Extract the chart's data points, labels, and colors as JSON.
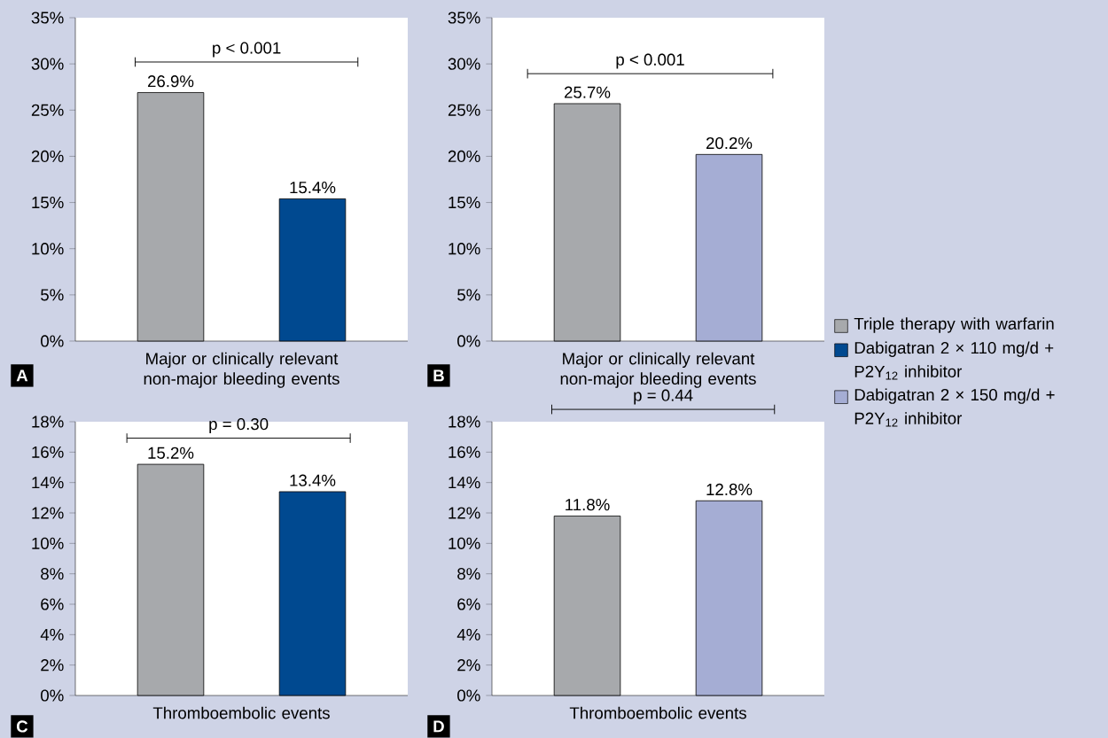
{
  "chart_data": [
    {
      "type": "bar",
      "xlabel": "Major or clinically relevant non-major bleeding events",
      "categories": [
        null
      ],
      "ylim": [
        0,
        35
      ],
      "yticks": [
        {
          "value": 0,
          "label": "0%"
        },
        {
          "value": 5,
          "label": "5%"
        },
        {
          "value": 10,
          "label": "10%"
        },
        {
          "value": 15,
          "label": "15%"
        },
        {
          "value": 20,
          "label": "20%"
        },
        {
          "value": 25,
          "label": "25%"
        },
        {
          "value": 30,
          "label": "30%"
        },
        {
          "value": 35,
          "label": "35%"
        }
      ],
      "series": [
        {
          "name": "Triple therapy with warfarin",
          "color": "#a7a9ac",
          "values": [
            26.9
          ],
          "value_labels": [
            "26.9%"
          ]
        },
        {
          "name": "Dabigatran 2 × 110 mg/d + P2Y$_{12}$ inhibitor",
          "color": "#004990",
          "values": [
            15.4
          ],
          "value_labels": [
            "15.4%"
          ]
        }
      ],
      "annotations": [
        "p < 0.001",
        "A"
      ],
      "legend": "right",
      "grid": false
    },
    {
      "type": "bar",
      "xlabel": "Major or clinically relevant non-major bleeding events",
      "categories": [
        null
      ],
      "ylim": [
        0,
        35
      ],
      "yticks": [
        {
          "value": 0,
          "label": "0%"
        },
        {
          "value": 5,
          "label": "5%"
        },
        {
          "value": 10,
          "label": "10%"
        },
        {
          "value": 15,
          "label": "15%"
        },
        {
          "value": 20,
          "label": "20%"
        },
        {
          "value": 25,
          "label": "25%"
        },
        {
          "value": 30,
          "label": "30%"
        },
        {
          "value": 35,
          "label": "35%"
        }
      ],
      "series": [
        {
          "color": "#a7a9ac",
          "values": [
            25.7
          ],
          "value_labels": [
            "25.7%"
          ]
        },
        {
          "name": "Dabigatran 2 × 150 mg/d + P2Y$_{12}$ inhibitor",
          "color": "#a5add4",
          "values": [
            20.2
          ],
          "value_labels": [
            "20.2%"
          ]
        }
      ],
      "annotations": [
        "p < 0.001",
        "B"
      ],
      "legend": "right",
      "grid": false
    },
    {
      "type": "bar",
      "xlabel": "Thromboembolic events",
      "categories": [
        null
      ],
      "ylim": [
        0,
        18
      ],
      "yticks": [
        {
          "value": 0,
          "label": "0%"
        },
        {
          "value": 2,
          "label": "2%"
        },
        {
          "value": 4,
          "label": "4%"
        },
        {
          "value": 6,
          "label": "6%"
        },
        {
          "value": 8,
          "label": "8%"
        },
        {
          "value": 10,
          "label": "10%"
        },
        {
          "value": 12,
          "label": "12%"
        },
        {
          "value": 14,
          "label": "14%"
        },
        {
          "value": 16,
          "label": "16%"
        },
        {
          "value": 18,
          "label": "18%"
        }
      ],
      "series": [
        {
          "color": "#a7a9ac",
          "values": [
            15.2
          ],
          "value_labels": [
            "15.2%"
          ]
        },
        {
          "color": "#004990",
          "values": [
            13.4
          ],
          "value_labels": [
            "13.4%"
          ]
        }
      ],
      "annotations": [
        "p = 0.30",
        "C"
      ],
      "grid": false
    },
    {
      "type": "bar",
      "xlabel": "Thromboembolic events",
      "categories": [
        null
      ],
      "ylim": [
        0,
        18
      ],
      "yticks": [
        {
          "value": 0,
          "label": "0%"
        },
        {
          "value": 2,
          "label": "2%"
        },
        {
          "value": 4,
          "label": "4%"
        },
        {
          "value": 6,
          "label": "6%"
        },
        {
          "value": 8,
          "label": "8%"
        },
        {
          "value": 10,
          "label": "10%"
        },
        {
          "value": 12,
          "label": "12%"
        },
        {
          "value": 14,
          "label": "14%"
        },
        {
          "value": 16,
          "label": "16%"
        },
        {
          "value": 18,
          "label": "18%"
        }
      ],
      "series": [
        {
          "color": "#a7a9ac",
          "values": [
            11.8
          ],
          "value_labels": [
            "11.8%"
          ]
        },
        {
          "color": "#a5add4",
          "values": [
            12.8
          ],
          "value_labels": [
            "12.8%"
          ]
        }
      ],
      "annotations": [
        "p = 0.44",
        "D"
      ],
      "grid": false
    }
  ]
}
